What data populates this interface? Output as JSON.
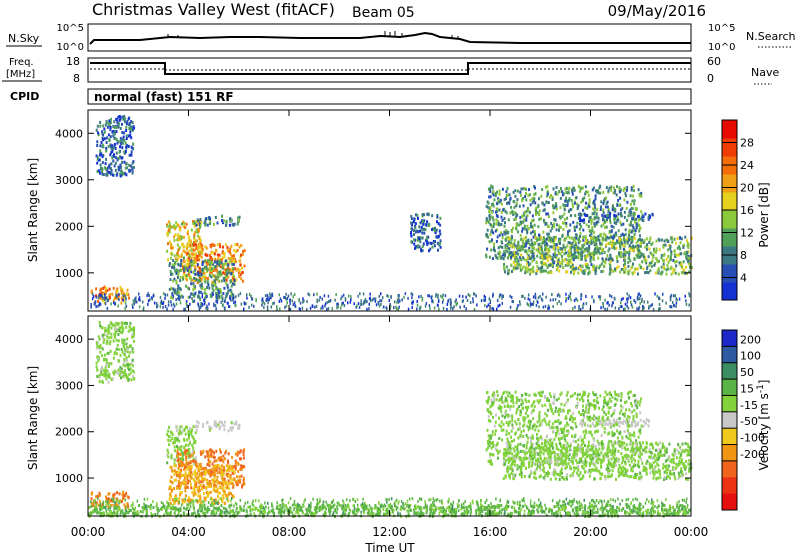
{
  "header": {
    "station": "Christmas Valley West (fitACF)",
    "beam": "Beam 05",
    "date": "09/May/2016"
  },
  "panels": {
    "nsky_label": "N.Sky",
    "nsearch_label": "N.Search",
    "noise_ticks": [
      "10^5",
      "10^0"
    ],
    "freq_label_line1": "Freq.",
    "freq_label_line2": "[MHz]",
    "freq_ticks": [
      "18",
      "8"
    ],
    "nave_label": "Nave",
    "nave_ticks": [
      "60",
      "0"
    ],
    "cpid_label": "CPID",
    "cpid_text": "normal (fast) 151 RF"
  },
  "colors": {
    "power": [
      "#1432d2",
      "#2850b4",
      "#3c7882",
      "#50a05a",
      "#8cc83c",
      "#e6d21e",
      "#f0a014",
      "#f56e0a",
      "#f03c05",
      "#e60a00"
    ],
    "velocity": [
      "#1e28c8",
      "#2d5aa0",
      "#3c8c64",
      "#5ab446",
      "#82d23c",
      "#c8c8c8",
      "#f0c81e",
      "#f09614",
      "#f0641e",
      "#ec3214",
      "#e60f0f"
    ]
  },
  "chart_data": [
    {
      "type": "heatmap",
      "quantity": "power",
      "xlabel": "",
      "ylabel": "Slant Range [km]",
      "xlim": [
        0,
        24
      ],
      "ylim": [
        180,
        4500
      ],
      "yticks": [
        1000,
        2000,
        3000,
        4000
      ],
      "colorbar_label": "Power [dB]",
      "colorbar_range": [
        0,
        32
      ],
      "colorbar_ticks": [
        4,
        8,
        12,
        16,
        20,
        24,
        28
      ],
      "regions": [
        {
          "x": [
            0.1,
            1.6
          ],
          "y": [
            380,
            730
          ],
          "value": 22
        },
        {
          "x": [
            3.1,
            4.5
          ],
          "y": [
            1280,
            2150
          ],
          "value": 18
        },
        {
          "x": [
            3.7,
            6.2
          ],
          "y": [
            820,
            1650
          ],
          "value": 22
        },
        {
          "x": [
            3.2,
            5.8
          ],
          "y": [
            480,
            1300
          ],
          "value": 10
        },
        {
          "x": [
            4.2,
            6.0
          ],
          "y": [
            2050,
            2250
          ],
          "value": 8
        },
        {
          "x": [
            0.3,
            1.8
          ],
          "y": [
            3100,
            4400
          ],
          "value": 6
        },
        {
          "x": [
            15.8,
            22.0
          ],
          "y": [
            1300,
            2900
          ],
          "value": 10
        },
        {
          "x": [
            16.5,
            24.0
          ],
          "y": [
            1000,
            1800
          ],
          "value": 12
        },
        {
          "x": [
            19.5,
            22.5
          ],
          "y": [
            2150,
            2300
          ],
          "value": 6
        },
        {
          "x": [
            12.8,
            14.0
          ],
          "y": [
            1500,
            2300
          ],
          "value": 6
        }
      ]
    },
    {
      "type": "heatmap",
      "quantity": "velocity",
      "xlabel": "Time UT",
      "ylabel": "Slant Range [km]",
      "xlim": [
        0,
        24
      ],
      "ylim": [
        180,
        4500
      ],
      "yticks": [
        1000,
        2000,
        3000,
        4000
      ],
      "xticks": [
        "00:00",
        "04:00",
        "08:00",
        "12:00",
        "16:00",
        "20:00",
        "00:00"
      ],
      "colorbar_label": "Velocity [m s",
      "colorbar_label_exp": "-1",
      "colorbar_label_end": "]",
      "colorbar_ticks": [
        "200",
        "100",
        "50",
        "15",
        "-15",
        "-50",
        "-100",
        "-200"
      ],
      "regions": [
        {
          "x": [
            0.1,
            1.6
          ],
          "y": [
            380,
            730
          ],
          "value": -200
        },
        {
          "x": [
            3.1,
            4.3
          ],
          "y": [
            1300,
            2150
          ],
          "value": 0
        },
        {
          "x": [
            3.5,
            6.2
          ],
          "y": [
            820,
            1650
          ],
          "value": -200
        },
        {
          "x": [
            3.2,
            5.8
          ],
          "y": [
            480,
            1300
          ],
          "value": -100
        },
        {
          "x": [
            4.2,
            6.0
          ],
          "y": [
            2050,
            2250
          ],
          "value": -30
        },
        {
          "x": [
            0.3,
            1.8
          ],
          "y": [
            3100,
            4400
          ],
          "value": 0
        },
        {
          "x": [
            15.8,
            22.0
          ],
          "y": [
            1300,
            2900
          ],
          "value": 0
        },
        {
          "x": [
            16.5,
            24.0
          ],
          "y": [
            1000,
            1800
          ],
          "value": 0
        },
        {
          "x": [
            19.5,
            22.5
          ],
          "y": [
            2150,
            2300
          ],
          "value": -30
        },
        {
          "x": [
            0.0,
            24.0
          ],
          "y": [
            200,
            450
          ],
          "value": 25
        }
      ]
    }
  ]
}
